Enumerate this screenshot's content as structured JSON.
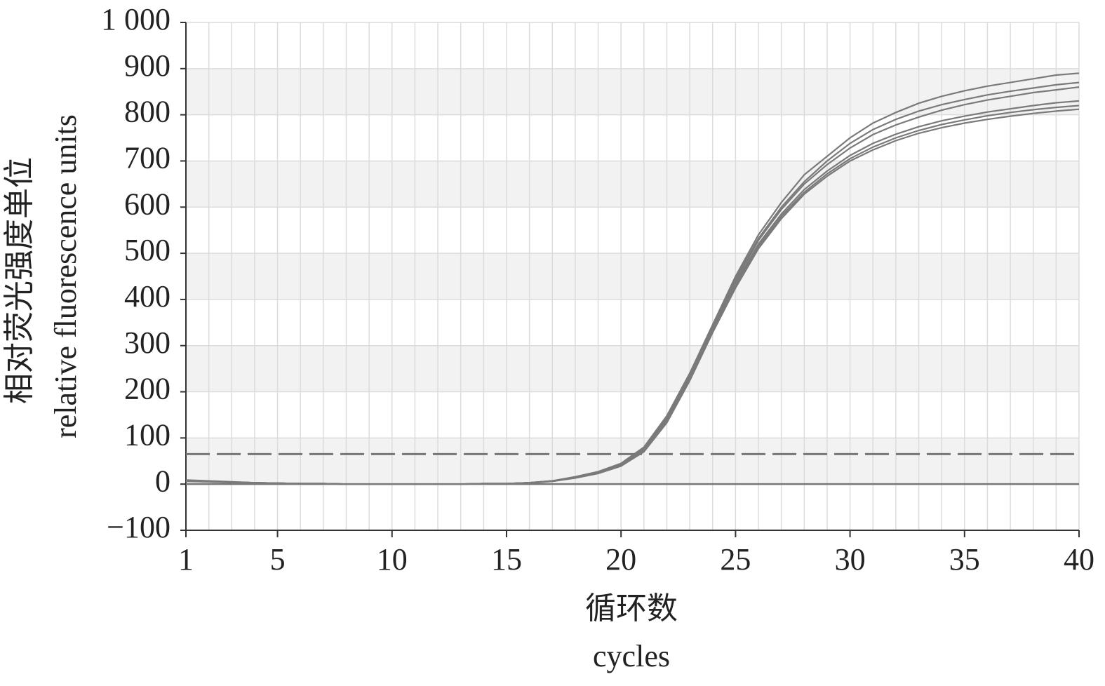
{
  "chart_data": {
    "type": "line",
    "x_label": [
      "循环数",
      "cycles"
    ],
    "y_label": [
      "相对荧光强度单位",
      "relative fluorescence units"
    ],
    "x": [
      1,
      2,
      3,
      4,
      5,
      6,
      7,
      8,
      9,
      10,
      11,
      12,
      13,
      14,
      15,
      16,
      17,
      18,
      19,
      20,
      21,
      22,
      23,
      24,
      25,
      26,
      27,
      28,
      29,
      30,
      31,
      32,
      33,
      34,
      35,
      36,
      37,
      38,
      39,
      40
    ],
    "xlim": [
      1,
      40
    ],
    "xticks": [
      1,
      5,
      10,
      15,
      20,
      25,
      30,
      35,
      40
    ],
    "ylim": [
      -100,
      1000
    ],
    "yticks": [
      {
        "value": -100,
        "label": "−100"
      },
      0,
      100,
      200,
      300,
      400,
      500,
      600,
      700,
      800,
      900,
      {
        "value": 1000,
        "label": "1 000"
      }
    ],
    "grid": true,
    "bands": true,
    "threshold": 65,
    "threshold_color": "#777777",
    "series": [
      {
        "color": "#7a7a7a",
        "values": [
          9,
          7,
          5,
          3,
          2,
          1,
          1,
          0,
          0,
          0,
          0,
          0,
          0,
          1,
          1,
          3,
          7,
          16,
          27,
          45,
          80,
          148,
          240,
          345,
          450,
          540,
          610,
          670,
          710,
          750,
          782,
          805,
          825,
          840,
          852,
          862,
          870,
          878,
          886,
          890
        ]
      },
      {
        "color": "#7a7a7a",
        "values": [
          8,
          6,
          4,
          3,
          2,
          1,
          1,
          0,
          0,
          0,
          0,
          0,
          0,
          1,
          1,
          3,
          7,
          15,
          26,
          43,
          77,
          143,
          235,
          340,
          445,
          532,
          600,
          655,
          700,
          738,
          768,
          790,
          808,
          822,
          833,
          843,
          851,
          858,
          865,
          870
        ]
      },
      {
        "color": "#7a7a7a",
        "values": [
          8,
          6,
          4,
          3,
          2,
          1,
          1,
          0,
          0,
          0,
          0,
          0,
          0,
          1,
          1,
          3,
          7,
          15,
          25,
          42,
          75,
          140,
          232,
          338,
          440,
          528,
          595,
          650,
          692,
          728,
          757,
          778,
          795,
          810,
          822,
          832,
          840,
          848,
          854,
          860
        ]
      },
      {
        "color": "#7a7a7a",
        "values": [
          7,
          5,
          4,
          3,
          2,
          1,
          1,
          0,
          0,
          0,
          0,
          0,
          0,
          1,
          1,
          3,
          6,
          14,
          24,
          41,
          73,
          138,
          230,
          335,
          435,
          520,
          585,
          638,
          678,
          712,
          738,
          758,
          774,
          787,
          797,
          806,
          813,
          820,
          826,
          830
        ]
      },
      {
        "color": "#7a7a7a",
        "values": [
          7,
          5,
          4,
          3,
          2,
          1,
          1,
          0,
          0,
          0,
          0,
          0,
          0,
          1,
          1,
          3,
          6,
          14,
          24,
          40,
          72,
          136,
          227,
          332,
          430,
          515,
          580,
          632,
          672,
          705,
          730,
          750,
          766,
          779,
          789,
          798,
          805,
          811,
          816,
          820
        ]
      },
      {
        "color": "#7a7a7a",
        "values": [
          6,
          5,
          3,
          2,
          2,
          1,
          1,
          0,
          0,
          0,
          0,
          0,
          0,
          1,
          1,
          2,
          6,
          13,
          23,
          39,
          70,
          133,
          224,
          328,
          425,
          510,
          575,
          628,
          667,
          700,
          724,
          744,
          760,
          772,
          782,
          790,
          797,
          803,
          808,
          812
        ]
      }
    ]
  }
}
